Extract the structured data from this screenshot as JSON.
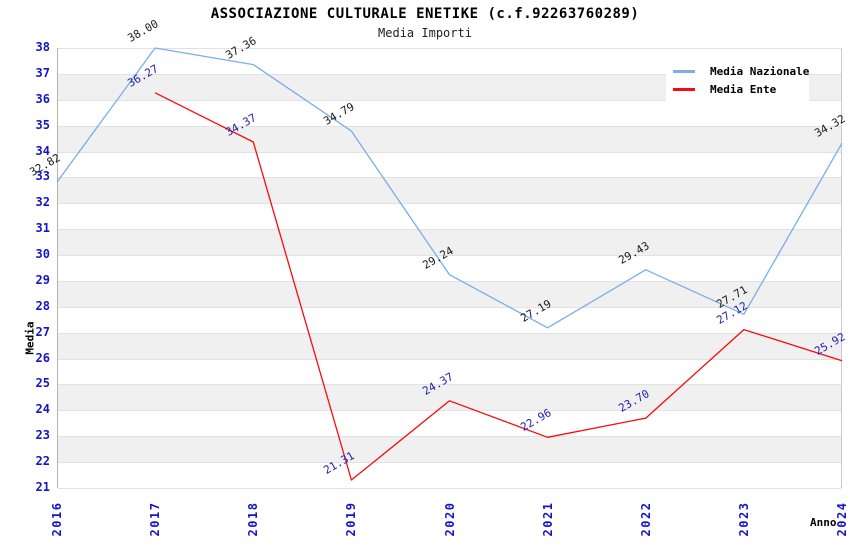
{
  "chart_data": {
    "type": "line",
    "title": "ASSOCIAZIONE CULTURALE ENETIKE (c.f.92263760289)",
    "subtitle": "Media Importi",
    "xlabel": "Anno",
    "ylabel": "Media",
    "x": [
      "2016",
      "2017",
      "2018",
      "2019",
      "2020",
      "2021",
      "2022",
      "2023",
      "2024"
    ],
    "ylim": [
      21,
      38
    ],
    "ytick_step": 1,
    "grid": "horizontal-bands",
    "legend_position": "top-right",
    "series": [
      {
        "name": "Media Nazionale",
        "color": "#7aaee8",
        "label_color": "#1a1a1a",
        "values": [
          32.82,
          38.0,
          37.36,
          34.79,
          29.24,
          27.19,
          29.43,
          27.71,
          34.32
        ]
      },
      {
        "name": "Media Ente",
        "color": "#f80b0b",
        "label_color": "#2020b0",
        "values": [
          null,
          36.27,
          34.37,
          21.31,
          24.37,
          22.96,
          23.7,
          27.12,
          25.92
        ]
      }
    ]
  },
  "colors": {
    "background": "#ffffff",
    "band_gray": "#f0f0f0",
    "gridline": "#e2e2e2",
    "tick_label": "#1414cc",
    "title": "#000000",
    "subtitle": "#222222"
  }
}
